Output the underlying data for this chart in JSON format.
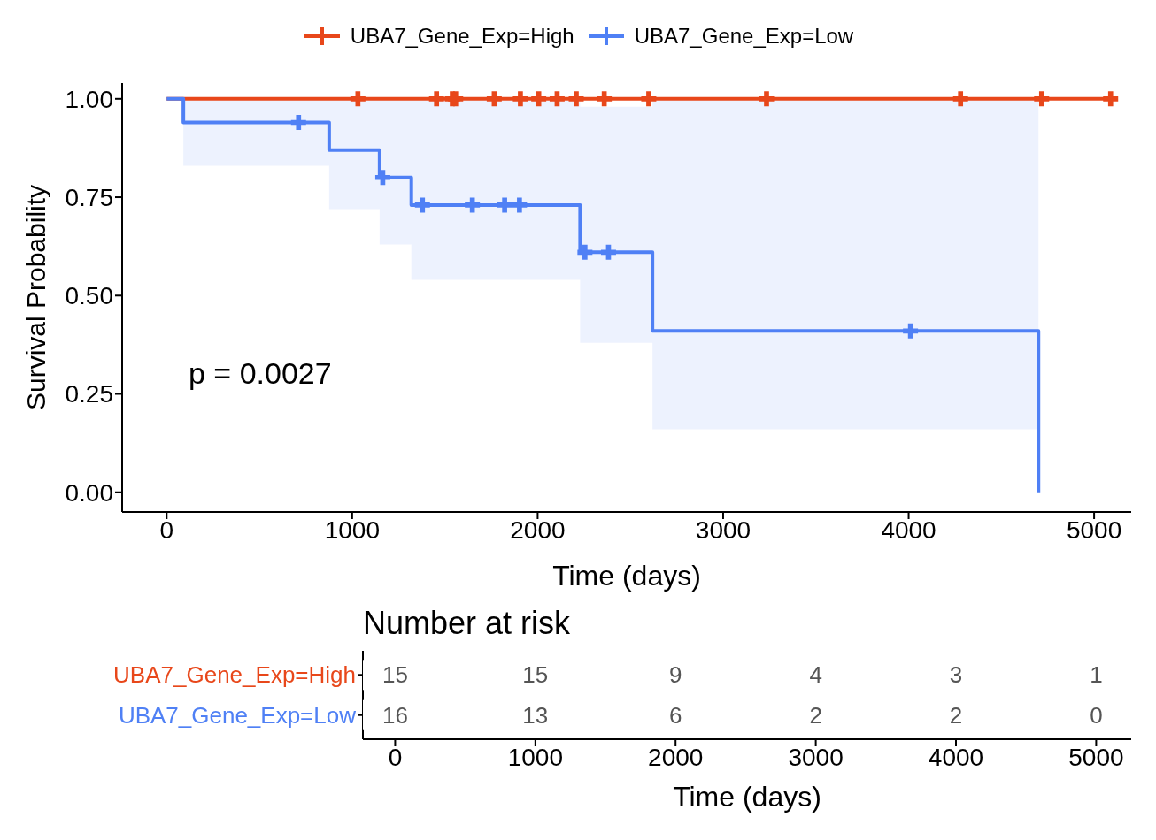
{
  "chart_data": [
    {
      "type": "step",
      "xlabel": "Time (days)",
      "ylabel": "Survival Probability",
      "xlim": [
        -240,
        5200
      ],
      "ylim": [
        -0.05,
        1.04
      ],
      "xticks": [
        0,
        1000,
        2000,
        3000,
        4000,
        5000
      ],
      "yticks": [
        {
          "value": 0,
          "label": "0.00"
        },
        {
          "value": 0.25,
          "label": "0.25"
        },
        {
          "value": 0.5,
          "label": "0.50"
        },
        {
          "value": 0.75,
          "label": "0.75"
        },
        {
          "value": 1,
          "label": "1.00"
        }
      ],
      "legend": "top",
      "line_style": "solid",
      "annotations": [
        "p = 0.0027"
      ],
      "series": [
        {
          "type": "step",
          "name": "UBA7_Gene_Exp=High",
          "color": "#e8471a",
          "x": [
            0,
            5089
          ],
          "values": [
            1,
            1
          ]
        },
        {
          "type": "step",
          "name": "UBA7_Gene_Exp=Low",
          "color": "#4f80f5",
          "x": [
            0,
            90,
            876,
            1148,
            1319,
            2229,
            2619,
            4700
          ],
          "values": [
            1,
            0.94,
            0.87,
            0.8,
            0.73,
            0.61,
            0.41,
            0
          ],
          "lower": [
            1,
            0.83,
            0.72,
            0.63,
            0.54,
            0.38,
            0.16,
            0
          ],
          "upper": [
            1,
            1,
            1,
            1,
            1,
            0.98,
            1,
            0
          ]
        },
        {
          "type": "scatter",
          "color": "#e8471a",
          "marker": "cross",
          "x": [
            1031,
            1455,
            1540,
            1558,
            1766,
            1907,
            2006,
            2105,
            2208,
            2359,
            2599,
            3234,
            4280,
            4717,
            5089
          ],
          "values": [
            1,
            1,
            1,
            1,
            1,
            1,
            1,
            1,
            1,
            1,
            1,
            1,
            1,
            1,
            1
          ]
        },
        {
          "type": "scatter",
          "color": "#4f80f5",
          "marker": "cross",
          "x": [
            711,
            1165,
            1379,
            1648,
            1822,
            1902,
            2255,
            2382,
            4010
          ],
          "values": [
            0.94,
            0.8,
            0.73,
            0.73,
            0.73,
            0.73,
            0.61,
            0.61,
            0.41
          ]
        }
      ]
    },
    {
      "type": "heatmap",
      "title": "Number at risk",
      "xlabel": "Time (days)",
      "categories": [
        "0",
        "1000",
        "2000",
        "3000",
        "4000",
        "5000"
      ],
      "y_categories": [
        "UBA7_Gene_Exp=High",
        "UBA7_Gene_Exp=Low"
      ],
      "colors": [
        "#e8471a",
        "#4f80f5"
      ],
      "data_labels": true,
      "cells": [
        [
          15,
          15,
          9,
          4,
          3,
          1
        ],
        [
          16,
          13,
          6,
          2,
          2,
          0
        ]
      ]
    }
  ]
}
